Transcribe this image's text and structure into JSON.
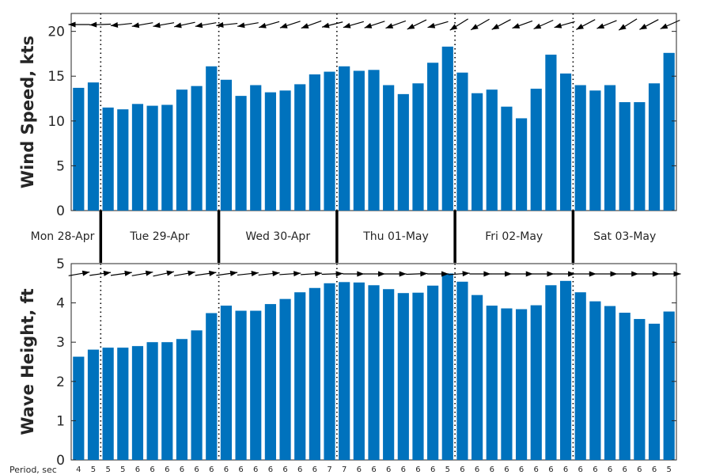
{
  "chart_data": {
    "type": "bar",
    "day_labels": [
      "Mon 28-Apr",
      "Tue 29-Apr",
      "Wed 30-Apr",
      "Thu 01-May",
      "Fri 02-May",
      "Sat 03-May"
    ],
    "bar_color": "#0072BD",
    "period_label": "Period, sec",
    "periods": [
      4,
      5,
      5,
      5,
      6,
      6,
      6,
      6,
      6,
      6,
      6,
      6,
      6,
      6,
      6,
      6,
      6,
      7,
      7,
      6,
      6,
      6,
      6,
      6,
      6,
      5,
      6,
      6,
      6,
      6,
      6,
      6,
      6,
      6,
      6,
      6,
      6,
      6,
      6,
      6,
      5
    ],
    "wind": {
      "ylabel": "Wind Speed, kts",
      "ylim": [
        0,
        22
      ],
      "yticks": [
        0,
        5,
        10,
        15,
        20
      ],
      "values": [
        13.7,
        14.3,
        11.5,
        11.3,
        11.9,
        11.7,
        11.8,
        13.5,
        13.9,
        16.1,
        14.6,
        12.8,
        14.0,
        13.2,
        13.4,
        14.1,
        15.2,
        15.5,
        16.1,
        15.6,
        15.7,
        14.0,
        13.0,
        14.2,
        16.5,
        18.3,
        15.4,
        13.1,
        13.5,
        11.6,
        10.3,
        13.6,
        17.4,
        15.3,
        14.0,
        13.4,
        14.0,
        12.1,
        12.1,
        14.2,
        17.6
      ],
      "direction_arrows_per_day": 4,
      "direction_deg": [
        -180,
        -182,
        -186,
        -190,
        -190,
        -192,
        -190,
        -186,
        -190,
        -196,
        -198,
        -200,
        -194,
        -196,
        -198,
        -200,
        -206,
        -196,
        -212,
        -210,
        -208,
        -200,
        -204,
        -196,
        -208,
        -202,
        -212,
        -208,
        -204
      ]
    },
    "wave": {
      "ylabel": "Wave Height, ft",
      "ylim": [
        0,
        5
      ],
      "yticks": [
        0,
        1,
        2,
        3,
        4,
        5
      ],
      "values": [
        2.63,
        2.81,
        2.86,
        2.86,
        2.9,
        3.0,
        3.0,
        3.08,
        3.3,
        3.74,
        3.93,
        3.8,
        3.8,
        3.97,
        4.1,
        4.27,
        4.38,
        4.5,
        4.53,
        4.52,
        4.45,
        4.35,
        4.25,
        4.26,
        4.44,
        4.75,
        4.54,
        4.2,
        3.93,
        3.86,
        3.84,
        3.94,
        4.45,
        4.56,
        4.27,
        4.04,
        3.92,
        3.75,
        3.59,
        3.47,
        3.78
      ],
      "direction_deg": [
        -10,
        -8,
        -8,
        -10,
        -12,
        -10,
        -8,
        -8,
        -6,
        -6,
        -4,
        -4,
        -2,
        0,
        0,
        0,
        -2,
        0,
        -4,
        0,
        0,
        0,
        0,
        0,
        0,
        0,
        0,
        0,
        0
      ]
    },
    "day_boundaries_bar_index": [
      1.5,
      9.5,
      17.5,
      25.5,
      33.5
    ]
  }
}
